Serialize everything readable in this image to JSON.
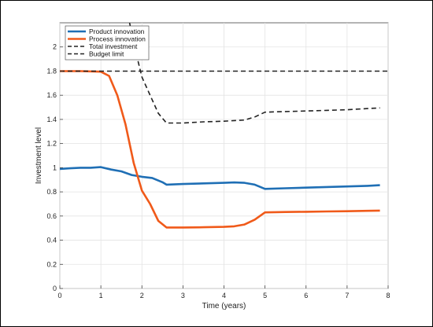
{
  "chart_data": {
    "type": "line",
    "title": "",
    "xlabel": "Time (years)",
    "ylabel": "Investment level",
    "xlim": [
      0,
      8
    ],
    "ylim": [
      0,
      2.2
    ],
    "xticks": [
      0,
      1,
      2,
      3,
      4,
      5,
      6,
      7,
      8
    ],
    "yticks": [
      0,
      0.2,
      0.4,
      0.6,
      0.8,
      1,
      1.2,
      1.4,
      1.6,
      1.8,
      2
    ],
    "grid": true,
    "legend_position": "top-left",
    "series": [
      {
        "name": "Product innovation",
        "color": "#1f6fb5",
        "style": "solid",
        "x": [
          0,
          0.25,
          0.5,
          0.75,
          1.0,
          1.25,
          1.5,
          1.75,
          2.0,
          2.25,
          2.5,
          2.6,
          3.0,
          3.5,
          4.0,
          4.25,
          4.5,
          4.75,
          5.0,
          5.5,
          6.0,
          6.5,
          7.0,
          7.5,
          7.8
        ],
        "y": [
          0.99,
          0.995,
          1.0,
          1.0,
          1.005,
          0.985,
          0.97,
          0.94,
          0.925,
          0.915,
          0.88,
          0.86,
          0.865,
          0.87,
          0.875,
          0.878,
          0.875,
          0.86,
          0.825,
          0.83,
          0.835,
          0.84,
          0.845,
          0.85,
          0.855
        ]
      },
      {
        "name": "Process innovation",
        "color": "#f05a1a",
        "style": "solid",
        "x": [
          0,
          0.5,
          1.0,
          1.2,
          1.4,
          1.6,
          1.8,
          2.0,
          2.2,
          2.4,
          2.6,
          3.0,
          3.5,
          4.0,
          4.25,
          4.5,
          4.75,
          5.0,
          5.5,
          6.0,
          6.5,
          7.0,
          7.5,
          7.8
        ],
        "y": [
          1.8,
          1.8,
          1.795,
          1.76,
          1.6,
          1.36,
          1.04,
          0.81,
          0.7,
          0.56,
          0.505,
          0.505,
          0.507,
          0.51,
          0.515,
          0.53,
          0.57,
          0.63,
          0.633,
          0.635,
          0.638,
          0.64,
          0.643,
          0.645
        ]
      },
      {
        "name": "Total investment",
        "color": "#222222",
        "style": "dashed",
        "x": [
          1.7,
          1.8,
          2.0,
          2.2,
          2.4,
          2.6,
          3.0,
          3.5,
          4.0,
          4.25,
          4.5,
          4.75,
          5.0,
          5.5,
          6.0,
          6.5,
          7.0,
          7.5,
          7.8
        ],
        "y": [
          2.2,
          2.03,
          1.75,
          1.6,
          1.45,
          1.37,
          1.37,
          1.38,
          1.385,
          1.39,
          1.395,
          1.42,
          1.46,
          1.465,
          1.47,
          1.475,
          1.48,
          1.49,
          1.495
        ]
      },
      {
        "name": "Budget limit",
        "color": "#222222",
        "style": "dashed",
        "x": [
          0,
          8
        ],
        "y": [
          1.8,
          1.8
        ]
      }
    ]
  }
}
